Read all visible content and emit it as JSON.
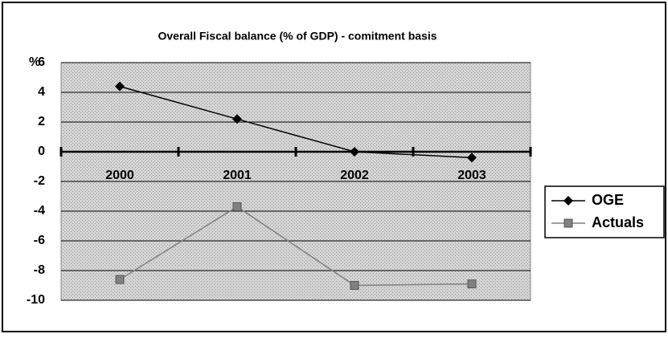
{
  "chart_data": {
    "type": "line",
    "title": "Overall Fiscal balance (% of GDP) - comitment basis",
    "y_label": "%",
    "categories": [
      "2000",
      "2001",
      "2002",
      "2003"
    ],
    "series": [
      {
        "name": "OGE",
        "color": "#000000",
        "marker": "diamond",
        "values": [
          4.4,
          2.2,
          0,
          -0.4
        ]
      },
      {
        "name": "Actuals",
        "color": "#808080",
        "marker": "square",
        "values": [
          -8.6,
          -3.7,
          -9.0,
          -8.9
        ]
      }
    ],
    "ylim": [
      -10,
      6
    ],
    "yticks": [
      -10,
      -8,
      -6,
      -4,
      -2,
      0,
      2,
      4,
      6
    ],
    "grid": true,
    "legend": "right"
  }
}
